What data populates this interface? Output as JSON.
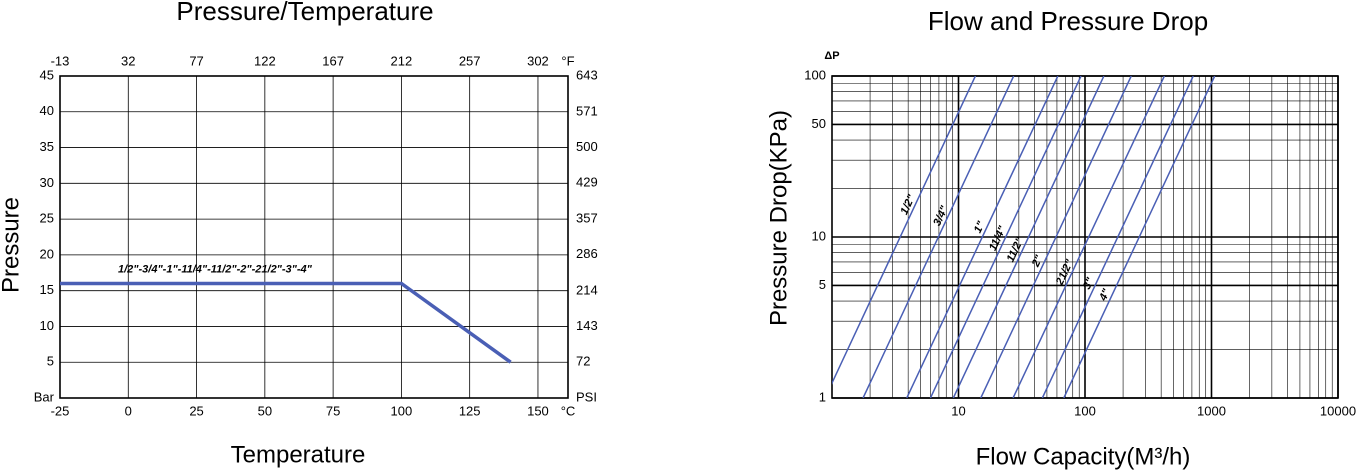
{
  "chart_data": [
    {
      "type": "line",
      "title": "Pressure/Temperature",
      "x_label": "Temperature",
      "y_label": "Pressure",
      "x_unit": "°C",
      "x2_unit": "°F",
      "xlim": [
        -25,
        161
      ],
      "xticks": [
        -25,
        0,
        25,
        50,
        75,
        100,
        125,
        150
      ],
      "x2lim": [
        -13,
        321.8
      ],
      "x2ticks": [
        -13,
        32,
        77,
        122,
        167,
        212,
        257,
        302
      ],
      "ylim": [
        0,
        45
      ],
      "yticks": [
        {
          "value": 0,
          "label": "Bar"
        },
        5,
        10,
        15,
        20,
        25,
        30,
        35,
        40,
        45
      ],
      "y2lim": [
        0,
        643
      ],
      "y2ticks": [
        {
          "value": 0,
          "label": "PSI"
        },
        72,
        143,
        214,
        286,
        357,
        429,
        500,
        571,
        643
      ],
      "grid": true,
      "log": false,
      "series": [
        {
          "name": "1/2\"-3/4\"-1\"-11/4\"-11/2\"-2\"-21/2\"-3\"-4\"",
          "color": "#4a5fb5",
          "label_color": "#8b3a1a",
          "x": [
            -25,
            100,
            140
          ],
          "values": [
            16,
            16,
            5
          ]
        }
      ]
    },
    {
      "type": "line",
      "title": "Flow and Pressure Drop",
      "x_label": "Flow Capacity(M³/h)",
      "y_label": "Pressure Drop(KPa)",
      "y_unit": "ΔP",
      "log": true,
      "grid": true,
      "xlim": [
        1,
        10000
      ],
      "xticks": [
        10,
        100,
        1000,
        10000
      ],
      "ylim": [
        1,
        100
      ],
      "yticks": [
        1,
        5,
        10,
        50,
        100
      ],
      "series": [
        {
          "name": "1/2\"",
          "color": "#4a5fb5",
          "label_color": "#8b3a1a",
          "x": [
            0.88,
            13.6
          ],
          "values": [
            1,
            100
          ]
        },
        {
          "name": "3/4\"",
          "color": "#4a5fb5",
          "label_color": "#8b3a1a",
          "x": [
            1.76,
            27.3
          ],
          "values": [
            1,
            100
          ]
        },
        {
          "name": "1\"",
          "color": "#4a5fb5",
          "label_color": "#8b3a1a",
          "x": [
            3.9,
            61
          ],
          "values": [
            1,
            100
          ]
        },
        {
          "name": "11/4\"",
          "color": "#4a5fb5",
          "label_color": "#8b3a1a",
          "x": [
            6.0,
            93
          ],
          "values": [
            1,
            100
          ]
        },
        {
          "name": "11/2\"",
          "color": "#4a5fb5",
          "label_color": "#8b3a1a",
          "x": [
            9.1,
            141
          ],
          "values": [
            1,
            100
          ]
        },
        {
          "name": "2\"",
          "color": "#4a5fb5",
          "label_color": "#8b3a1a",
          "x": [
            15,
            232
          ],
          "values": [
            1,
            100
          ]
        },
        {
          "name": "21/2\"",
          "color": "#4a5fb5",
          "label_color": "#8b3a1a",
          "x": [
            27,
            424
          ],
          "values": [
            1,
            100
          ]
        },
        {
          "name": "3\"",
          "color": "#4a5fb5",
          "label_color": "#8b3a1a",
          "x": [
            46,
            717
          ],
          "values": [
            1,
            100
          ]
        },
        {
          "name": "4\"",
          "color": "#4a5fb5",
          "label_color": "#8b3a1a",
          "x": [
            68,
            1060
          ],
          "values": [
            1,
            100
          ]
        }
      ]
    }
  ]
}
